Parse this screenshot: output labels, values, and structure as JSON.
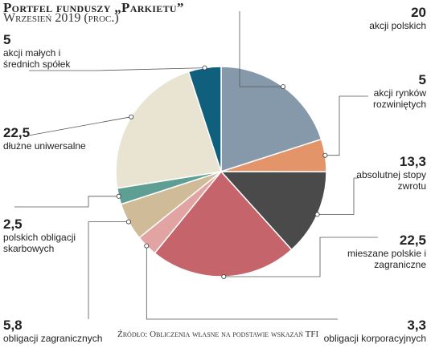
{
  "header": {
    "title": "Portfel funduszy „Parkietu”",
    "subtitle": "Wrzesień 2019 (proc.)"
  },
  "source": "Źródło: Obliczenia własne na podstawie wskazań TFI",
  "chart_data": {
    "type": "pie",
    "slices": [
      {
        "label": "akcji polskich",
        "value": 20,
        "value_label": "20",
        "color": "#8599ab"
      },
      {
        "label": "akcji rynków rozwiniętych",
        "value": 5,
        "value_label": "5",
        "color": "#e39569"
      },
      {
        "label": "absolutnej stopy zwrotu",
        "value": 13.3,
        "value_label": "13,3",
        "color": "#4a4a4a"
      },
      {
        "label": "mieszane polskie i zagraniczne",
        "value": 22.5,
        "value_label": "22,5",
        "color": "#c6646b"
      },
      {
        "label": "obligacji korporacyjnych",
        "value": 3.3,
        "value_label": "3,3",
        "color": "#e2a3a3"
      },
      {
        "label": "obligacji zagranicznych",
        "value": 5.8,
        "value_label": "5,8",
        "color": "#cfbb98"
      },
      {
        "label": "polskich obligacji skarbowych",
        "value": 2.5,
        "value_label": "2,5",
        "color": "#5e9e93"
      },
      {
        "label": "dłużne uniwersalne",
        "value": 22.5,
        "value_label": "22,5",
        "color": "#e9e3d2"
      },
      {
        "label": "akcji małych i średnich spółek",
        "value": 5,
        "value_label": "5",
        "color": "#0f5f7d"
      }
    ]
  }
}
